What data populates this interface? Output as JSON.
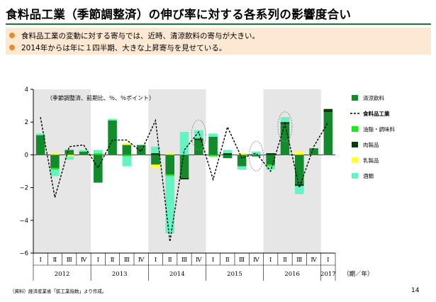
{
  "title": "食料品工業（季節調整済）の伸び率に対する各系列の影響度合い",
  "bullets": [
    "食料品工業の変動に対する寄与では、近時、清涼飲料の寄与が大きい。",
    "2014年からは年に１四半期、大きな上昇寄与を見せている。"
  ],
  "source": "（資料）経済産業省「鉱工業指数」より作成。",
  "page_number": "14",
  "colors": {
    "title_rule": "#1a7a2e",
    "bullet_bg": "#fde9d3",
    "bullet_dot": "#e98c2c",
    "shade": "#e6e6e6"
  },
  "chart_data": {
    "type": "bar",
    "note": "（季節調整済、前期比、％、％ポイント）",
    "x_unit_label": "（期／年）",
    "ylim": [
      -6,
      4
    ],
    "yticks": [
      "4",
      "2",
      "0",
      "−2",
      "−4",
      "−6"
    ],
    "quarters": [
      "Ⅰ",
      "Ⅱ",
      "Ⅲ",
      "Ⅳ",
      "Ⅰ",
      "Ⅱ",
      "Ⅲ",
      "Ⅳ",
      "Ⅰ",
      "Ⅱ",
      "Ⅲ",
      "Ⅳ",
      "Ⅰ",
      "Ⅱ",
      "Ⅲ",
      "Ⅳ",
      "Ⅰ",
      "Ⅱ",
      "Ⅲ",
      "Ⅳ",
      "Ⅰ"
    ],
    "years": [
      {
        "label": "2012",
        "count": 4
      },
      {
        "label": "2013",
        "count": 4
      },
      {
        "label": "2014",
        "count": 4
      },
      {
        "label": "2015",
        "count": 4
      },
      {
        "label": "2016",
        "count": 4
      },
      {
        "label": "2017",
        "count": 1
      }
    ],
    "shaded_years": [
      0,
      2,
      4
    ],
    "highlight_circles": [
      11,
      15,
      17
    ],
    "series": [
      {
        "name": "清涼飲料",
        "color": "#138a2c",
        "kind": "bar",
        "values": [
          1.2,
          -0.8,
          0.3,
          0.2,
          -1.7,
          2.1,
          0.6,
          0.6,
          -0.6,
          -1.2,
          -1.4,
          0.9,
          1.1,
          -0.2,
          -0.7,
          -0.1,
          -0.6,
          1.9,
          -1.8,
          0.4,
          2.6
        ]
      },
      {
        "name": "食料品工業",
        "color": "#000000",
        "kind": "line",
        "values": [
          2.3,
          -2.6,
          0.5,
          0.6,
          -0.8,
          0.9,
          0.9,
          0.2,
          2.1,
          -5.3,
          0.3,
          1.4,
          -1.5,
          1.7,
          -0.2,
          0.1,
          -1.0,
          1.9,
          -2.0,
          0.5,
          2.0
        ]
      },
      {
        "name": "油脂・調味料",
        "color": "#1ee81e",
        "kind": "bar",
        "values": [
          0.0,
          -0.1,
          0.0,
          0.0,
          0.1,
          0.0,
          -0.1,
          0.0,
          0.0,
          -0.1,
          0.0,
          0.0,
          -0.1,
          0.0,
          0.0,
          0.0,
          -0.1,
          0.0,
          0.0,
          0.0,
          0.0
        ]
      },
      {
        "name": "肉製品",
        "color": "#0b3b0b",
        "kind": "bar",
        "values": [
          0.0,
          0.0,
          0.0,
          0.0,
          0.0,
          0.0,
          0.0,
          0.0,
          0.1,
          0.0,
          -0.1,
          0.1,
          0.0,
          0.1,
          0.0,
          0.0,
          0.1,
          0.1,
          -0.1,
          0.0,
          0.2
        ]
      },
      {
        "name": "乳製品",
        "color": "#ffff33",
        "kind": "bar",
        "values": [
          0.0,
          0.1,
          -0.1,
          0.0,
          0.0,
          0.0,
          0.1,
          0.0,
          -0.2,
          0.1,
          0.0,
          0.0,
          0.0,
          0.0,
          0.1,
          0.0,
          0.0,
          0.0,
          0.2,
          0.0,
          0.0
        ]
      },
      {
        "name": "酒類",
        "color": "#66f2c2",
        "kind": "bar",
        "values": [
          0.1,
          -0.4,
          -0.2,
          0.1,
          0.2,
          0.1,
          -0.6,
          0.0,
          0.4,
          -3.5,
          1.4,
          0.5,
          0.2,
          0.2,
          -0.2,
          0.2,
          -0.2,
          0.3,
          -0.5,
          0.0,
          0.0
        ]
      }
    ]
  }
}
